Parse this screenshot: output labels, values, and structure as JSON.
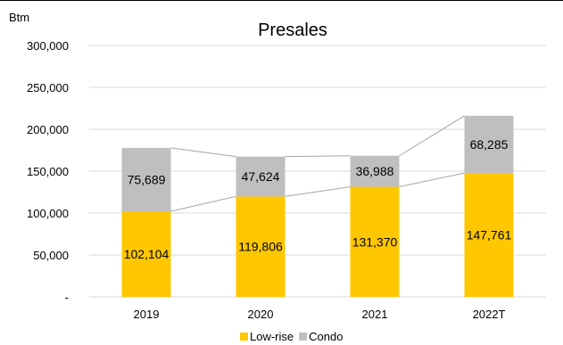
{
  "chart_data": {
    "type": "bar",
    "stacked": true,
    "title": "Presales",
    "ylabel": "Btm",
    "xlabel": "",
    "categories": [
      "2019",
      "2020",
      "2021",
      "2022T"
    ],
    "series": [
      {
        "name": "Low-rise",
        "values": [
          102104,
          119806,
          131370,
          147761
        ],
        "labels": [
          "102,104",
          "119,806",
          "131,370",
          "147,761"
        ],
        "color": "#FFC700"
      },
      {
        "name": "Condo",
        "values": [
          75689,
          47624,
          36988,
          68285
        ],
        "labels": [
          "75,689",
          "47,624",
          "36,988",
          "68,285"
        ],
        "color": "#BFBFBF"
      }
    ],
    "ylim": [
      0,
      300000
    ],
    "yticks": [
      0,
      50000,
      100000,
      150000,
      200000,
      250000,
      300000
    ],
    "ytick_labels": [
      "-",
      "50,000",
      "100,000",
      "150,000",
      "200,000",
      "250,000",
      "300,000"
    ],
    "grid": true,
    "legend": "bottom",
    "series_lines": true,
    "gridline_color": "#D9D9D9",
    "series_line_color": "#A6A6A6"
  }
}
